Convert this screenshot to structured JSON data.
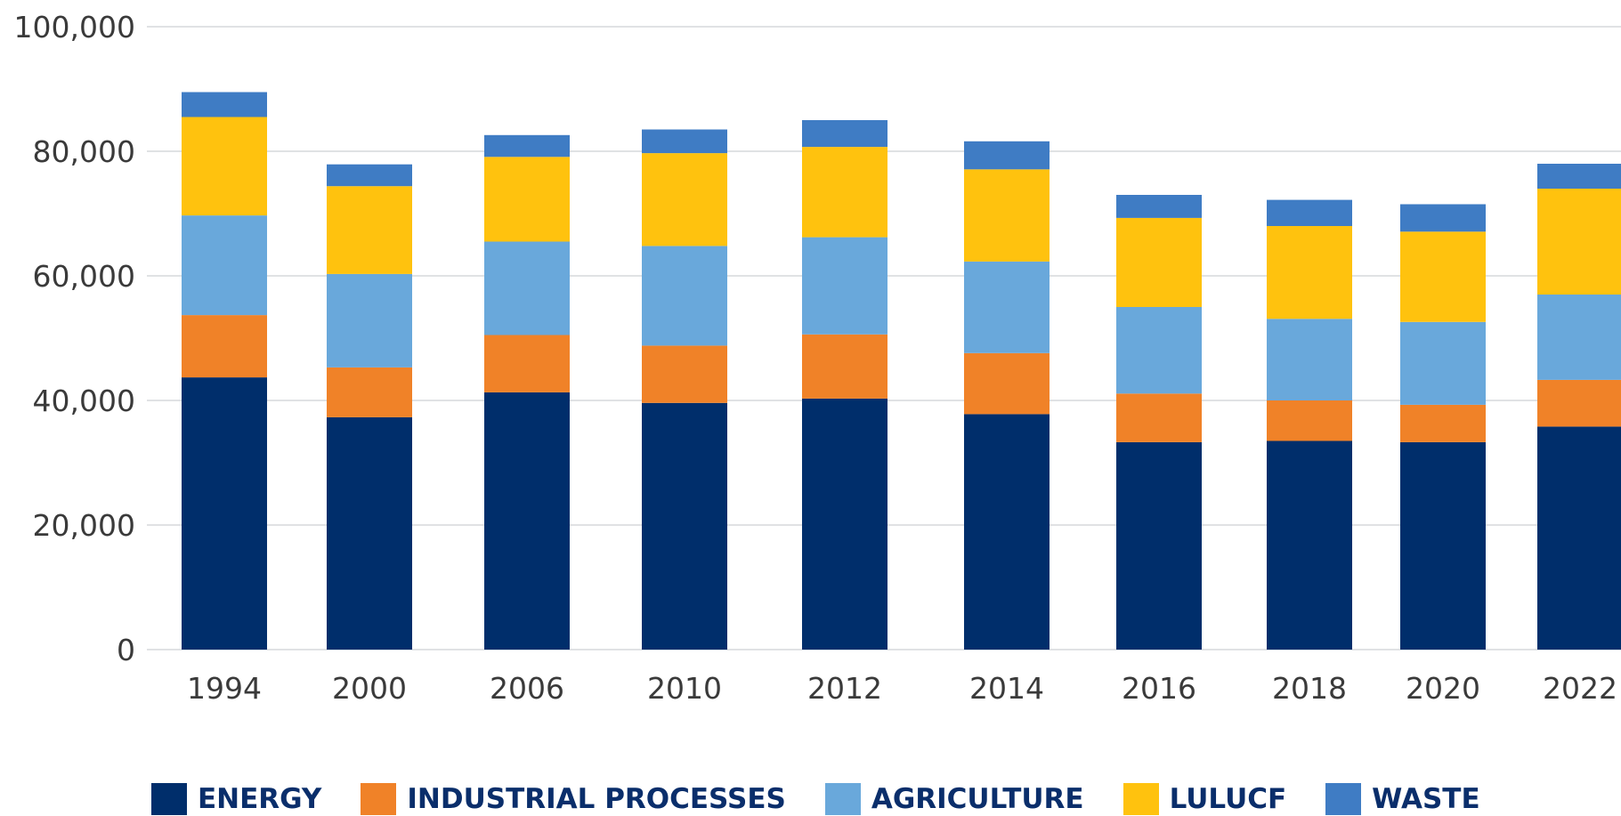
{
  "chart_data": {
    "type": "bar",
    "stacked": true,
    "categories": [
      "1994",
      "2000",
      "2006",
      "2010",
      "2012",
      "2014",
      "2016",
      "2018",
      "2020",
      "2022"
    ],
    "series": [
      {
        "name": "ENERGY",
        "color": "#002e6b",
        "values": [
          43700,
          37300,
          41300,
          39600,
          40300,
          37800,
          33300,
          33500,
          33300,
          35800
        ]
      },
      {
        "name": "INDUSTRIAL PROCESSES",
        "color": "#f08228",
        "values": [
          10000,
          8000,
          9200,
          9200,
          10300,
          9800,
          7800,
          6500,
          6000,
          7500
        ]
      },
      {
        "name": "AGRICULTURE",
        "color": "#69a8db",
        "values": [
          16000,
          15000,
          15000,
          16000,
          15600,
          14700,
          13900,
          13100,
          13300,
          13700
        ]
      },
      {
        "name": "LULUCF",
        "color": "#ffc20e",
        "values": [
          15800,
          14100,
          13600,
          14900,
          14500,
          14800,
          14300,
          14900,
          14500,
          17000
        ]
      },
      {
        "name": "WASTE",
        "color": "#3f7cc4",
        "values": [
          4000,
          3500,
          3500,
          3800,
          4300,
          4500,
          3700,
          4200,
          4400,
          4000
        ]
      }
    ],
    "y_ticks": [
      "0",
      "20,000",
      "40,000",
      "60,000",
      "80,000",
      "100,000"
    ],
    "ylim": [
      0,
      100000
    ],
    "grid": true,
    "legend_position": "bottom",
    "title": "",
    "xlabel": "",
    "ylabel": ""
  }
}
